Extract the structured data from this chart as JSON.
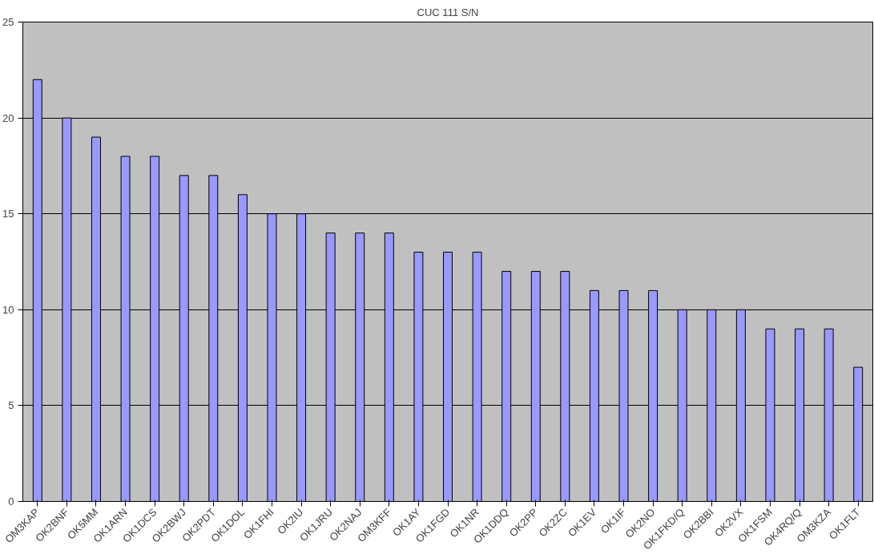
{
  "chart_data": {
    "type": "bar",
    "title": "CUC 111 S/N",
    "categories": [
      "OM3KAP",
      "OK2BNF",
      "OK5MM",
      "OK1ARN",
      "OK1DCS",
      "OK2BWJ",
      "OK2PDT",
      "OK1DOL",
      "OK1FHI",
      "OK2IU",
      "OK1JRU",
      "OK2NAJ",
      "OM3KFF",
      "OK1AY",
      "OK1FGD",
      "OK1NR",
      "OK1DDQ",
      "OK2PP",
      "OK2ZC",
      "OK1EV",
      "OK1IF",
      "OK2NO",
      "OK1FKD/Q",
      "OK2BBI",
      "OK2VX",
      "OK1FSM",
      "OK4RQ/Q",
      "OM3KZA",
      "OK1FLT"
    ],
    "values": [
      22,
      20,
      19,
      18,
      18,
      17,
      17,
      16,
      15,
      15,
      14,
      14,
      14,
      13,
      13,
      13,
      12,
      12,
      12,
      11,
      11,
      11,
      10,
      10,
      10,
      9,
      9,
      9,
      7
    ],
    "color": "#9999ff",
    "ylim": [
      0,
      25
    ],
    "yticks": [
      0,
      5,
      10,
      15,
      20,
      25
    ],
    "grid": "y"
  }
}
